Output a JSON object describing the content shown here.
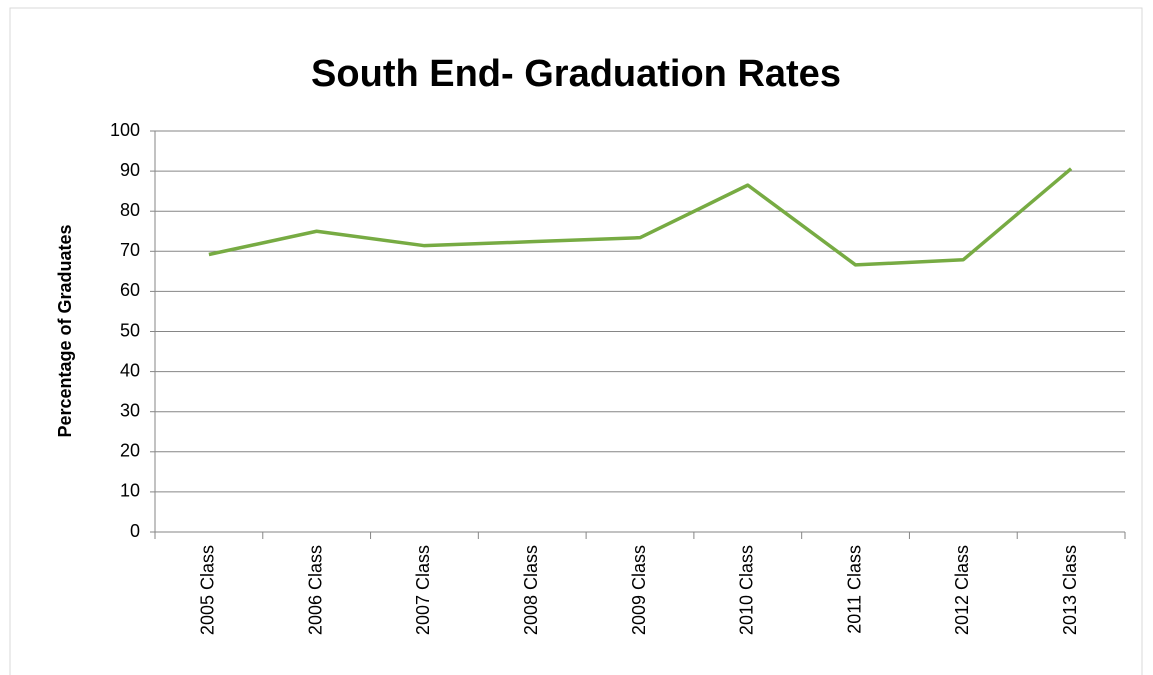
{
  "chart_data": {
    "type": "line",
    "title": "South End- Graduation Rates",
    "y_label": "Percentage of Graduates",
    "categories": [
      "2005 Class",
      "2006 Class",
      "2007 Class",
      "2008 Class",
      "2009 Class",
      "2010 Class",
      "2011 Class",
      "2012 Class",
      "2013 Class"
    ],
    "series": [
      {
        "name": "Graduation Rate",
        "color": "#77ab43",
        "values": [
          69.2,
          75.0,
          71.4,
          72.4,
          73.4,
          86.5,
          66.6,
          67.9,
          90.6
        ]
      }
    ],
    "ylim": [
      0,
      100
    ],
    "yticks": [
      0,
      10,
      20,
      30,
      40,
      50,
      60,
      70,
      80,
      90,
      100
    ],
    "grid": true
  }
}
